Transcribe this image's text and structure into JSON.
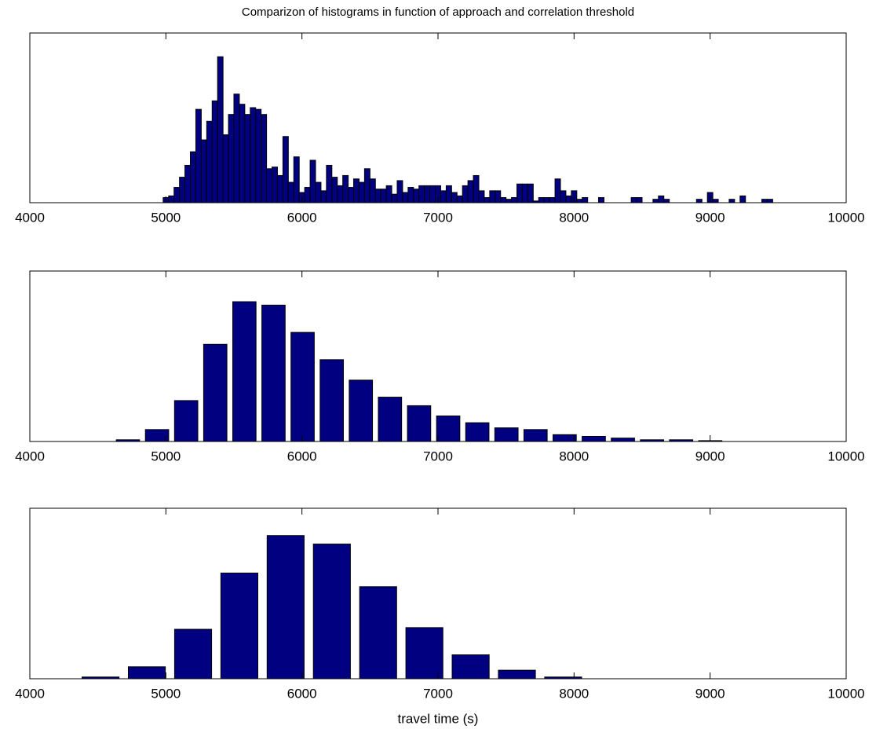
{
  "chart_data": [
    {
      "type": "histogram",
      "title": "Comparizon of histograms in function of approach and correlation threshold",
      "bins": [
        4980,
        5020,
        5060,
        5100,
        5140,
        5180,
        5220,
        5260,
        5300,
        5340,
        5380,
        5420,
        5460,
        5500,
        5540,
        5580,
        5620,
        5660,
        5700,
        5740,
        5780,
        5820,
        5860,
        5900,
        5940,
        5980,
        6020,
        6060,
        6100,
        6140,
        6180,
        6220,
        6260,
        6300,
        6340,
        6380,
        6420,
        6460,
        6500,
        6540,
        6580,
        6620,
        6660,
        6700,
        6740,
        6780,
        6820,
        6860,
        6900,
        6940,
        6980,
        7020,
        7060,
        7100,
        7140,
        7180,
        7220,
        7260,
        7300,
        7340,
        7380,
        7420,
        7460,
        7500,
        7540,
        7580,
        7620,
        7660,
        7700,
        7740,
        7780,
        7820,
        7860,
        7900,
        7940,
        7980,
        8020,
        8060,
        8100,
        8140,
        8180,
        8220,
        8260,
        8300,
        8340,
        8380,
        8420,
        8460,
        8500,
        8540,
        8580,
        8620,
        8660,
        8700,
        8740,
        8780,
        8820,
        8860,
        8900,
        8940,
        8980,
        9020,
        9060,
        9100,
        9140,
        9180,
        9220,
        9260,
        9300,
        9340,
        9380,
        9420,
        9460
      ],
      "values": [
        3,
        4,
        9,
        15,
        22,
        30,
        55,
        37,
        48,
        60,
        86,
        40,
        52,
        64,
        58,
        52,
        56,
        55,
        52,
        20,
        21,
        16,
        39,
        12,
        27,
        6,
        9,
        25,
        12,
        7,
        22,
        15,
        10,
        16,
        9,
        14,
        12,
        20,
        14,
        8,
        8,
        10,
        5,
        13,
        6,
        9,
        8,
        10,
        10,
        10,
        10,
        7,
        10,
        6,
        4,
        10,
        13,
        16,
        7,
        3,
        7,
        7,
        3,
        2,
        3,
        11,
        11,
        11,
        1,
        3,
        3,
        3,
        14,
        7,
        4,
        7,
        2,
        3,
        0,
        0,
        3,
        0,
        0,
        0,
        0,
        0,
        3,
        3,
        0,
        0,
        2,
        4,
        2,
        0,
        0,
        0,
        0,
        0,
        2,
        0,
        6,
        2,
        0,
        0,
        2,
        0,
        4,
        0,
        0,
        0,
        2,
        2
      ],
      "color": "#000080",
      "bar_width": 1,
      "xlim": [
        4000,
        10000
      ],
      "xticks": [
        4000,
        5000,
        6000,
        7000,
        8000,
        9000,
        10000
      ],
      "ylim": [
        0,
        100
      ]
    },
    {
      "type": "histogram",
      "bins": [
        4614,
        4828,
        5042,
        5256,
        5470,
        5684,
        5898,
        6112,
        6326,
        6540,
        6754,
        6968,
        7182,
        7396,
        7610,
        7824,
        8038,
        8252,
        8466,
        8680,
        8894,
        9108
      ],
      "values": [
        1,
        7,
        24,
        57,
        82,
        80,
        64,
        48,
        36,
        26,
        21,
        15,
        11,
        8,
        7,
        4,
        3,
        2,
        1,
        1,
        0.5
      ],
      "color": "#000080",
      "bar_width": 0.8,
      "xlim": [
        4000,
        10000
      ],
      "xticks": [
        4000,
        5000,
        6000,
        7000,
        8000,
        9000,
        10000
      ],
      "ylim": [
        0,
        100
      ]
    },
    {
      "type": "histogram",
      "xlabel": "travel time (s)",
      "bins": [
        4350,
        4690,
        5030,
        5370,
        5710,
        6050,
        6390,
        6730,
        7070,
        7410,
        7750,
        8090
      ],
      "values": [
        1,
        7,
        29,
        62,
        84,
        79,
        54,
        30,
        14,
        5,
        1
      ],
      "color": "#000080",
      "bar_width": 0.8,
      "xlim": [
        4000,
        10000
      ],
      "xticks": [
        4000,
        5000,
        6000,
        7000,
        8000,
        9000,
        10000
      ],
      "ylim": [
        0,
        100
      ]
    }
  ]
}
